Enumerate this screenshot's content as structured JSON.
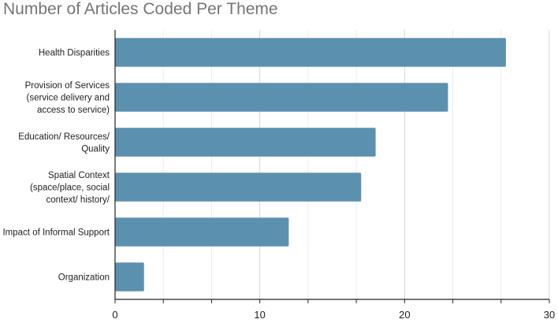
{
  "chart_data": {
    "type": "bar",
    "orientation": "horizontal",
    "title": "Number of Articles Coded Per Theme",
    "xlabel": "",
    "ylabel": "",
    "categories": [
      [
        "Health Disparities"
      ],
      [
        "Provision of Services",
        "(service delivery and",
        "access to service)"
      ],
      [
        "Education/ Resources/",
        "Quality"
      ],
      [
        "Spatial Context",
        "(space/place, social",
        "context/ history/"
      ],
      [
        "Impact of Informal Support"
      ],
      [
        "Organization"
      ]
    ],
    "values": [
      27,
      23,
      18,
      17,
      12,
      2
    ],
    "xlim": [
      0,
      30
    ],
    "xticks": [
      0,
      10,
      20,
      30
    ],
    "grid": true,
    "legend": "none",
    "bar_color": "#5b91af",
    "grid_color": "#d6d6d6",
    "axis_color": "#222222"
  }
}
